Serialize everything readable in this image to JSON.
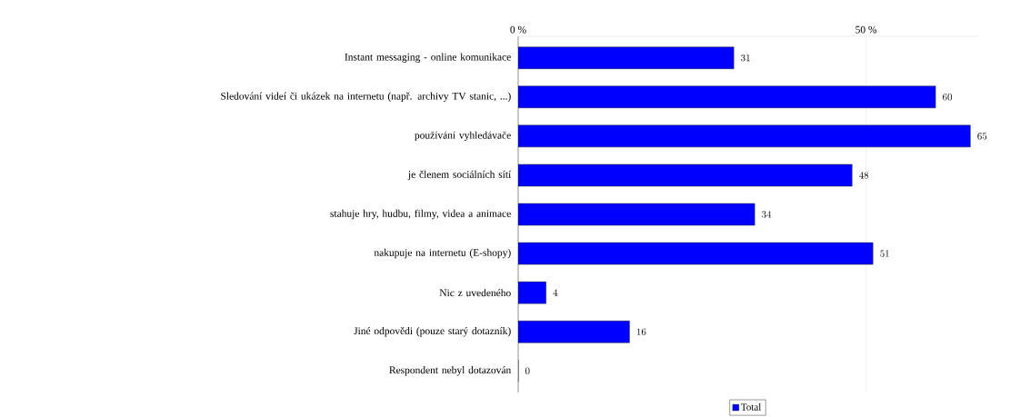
{
  "chart_data": {
    "type": "bar",
    "orientation": "horizontal",
    "categories": [
      "Instant messaging - online komunikace",
      "Sledování videí či ukázek na internetu (např. archivy TV stanic, ...)",
      "používání vyhledávače",
      "je členem sociálních sítí",
      "stahuje hry, hudbu, filmy, videa a animace",
      "nakupuje na internetu (E-shopy)",
      "Nic z uvedeného",
      "Jiné odpovědi (pouze starý dotazník)",
      "Respondent nebyl dotazován"
    ],
    "series": [
      {
        "name": "Total",
        "color": "#0000ff",
        "values": [
          31,
          60,
          65,
          48,
          34,
          51,
          4,
          16,
          0
        ]
      }
    ],
    "xlim": [
      0,
      66
    ],
    "xticks": [
      {
        "value": 0,
        "label": "0 %"
      },
      {
        "value": 50,
        "label": "50 %"
      }
    ],
    "grid": "x",
    "legend": "bottom",
    "data_labels": true
  }
}
